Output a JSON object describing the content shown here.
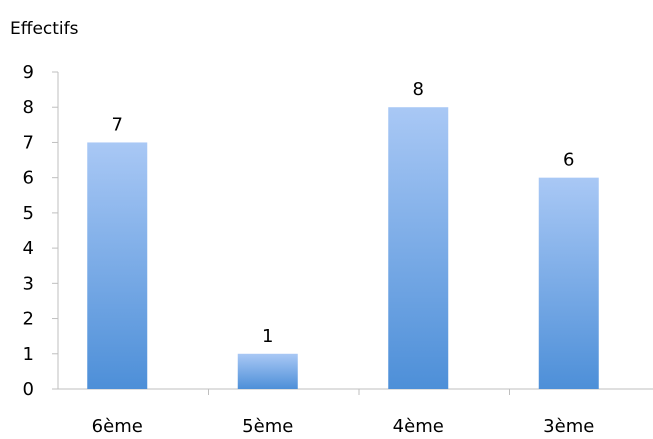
{
  "chart_data": {
    "type": "bar",
    "ylabel": "Effectifs",
    "categories": [
      "6ème",
      "5ème",
      "4ème",
      "3ème"
    ],
    "values": [
      7,
      1,
      8,
      6
    ],
    "data_labels": [
      "7",
      "1",
      "8",
      "6"
    ],
    "y_ticks": [
      "0",
      "1",
      "2",
      "3",
      "4",
      "5",
      "6",
      "7",
      "8",
      "9"
    ],
    "ylim": [
      0,
      9
    ],
    "grid": false,
    "colors": {
      "bar_top": "#a9c8f5",
      "bar_bottom": "#4d8fd8",
      "axis": "#bfbfbf"
    }
  }
}
